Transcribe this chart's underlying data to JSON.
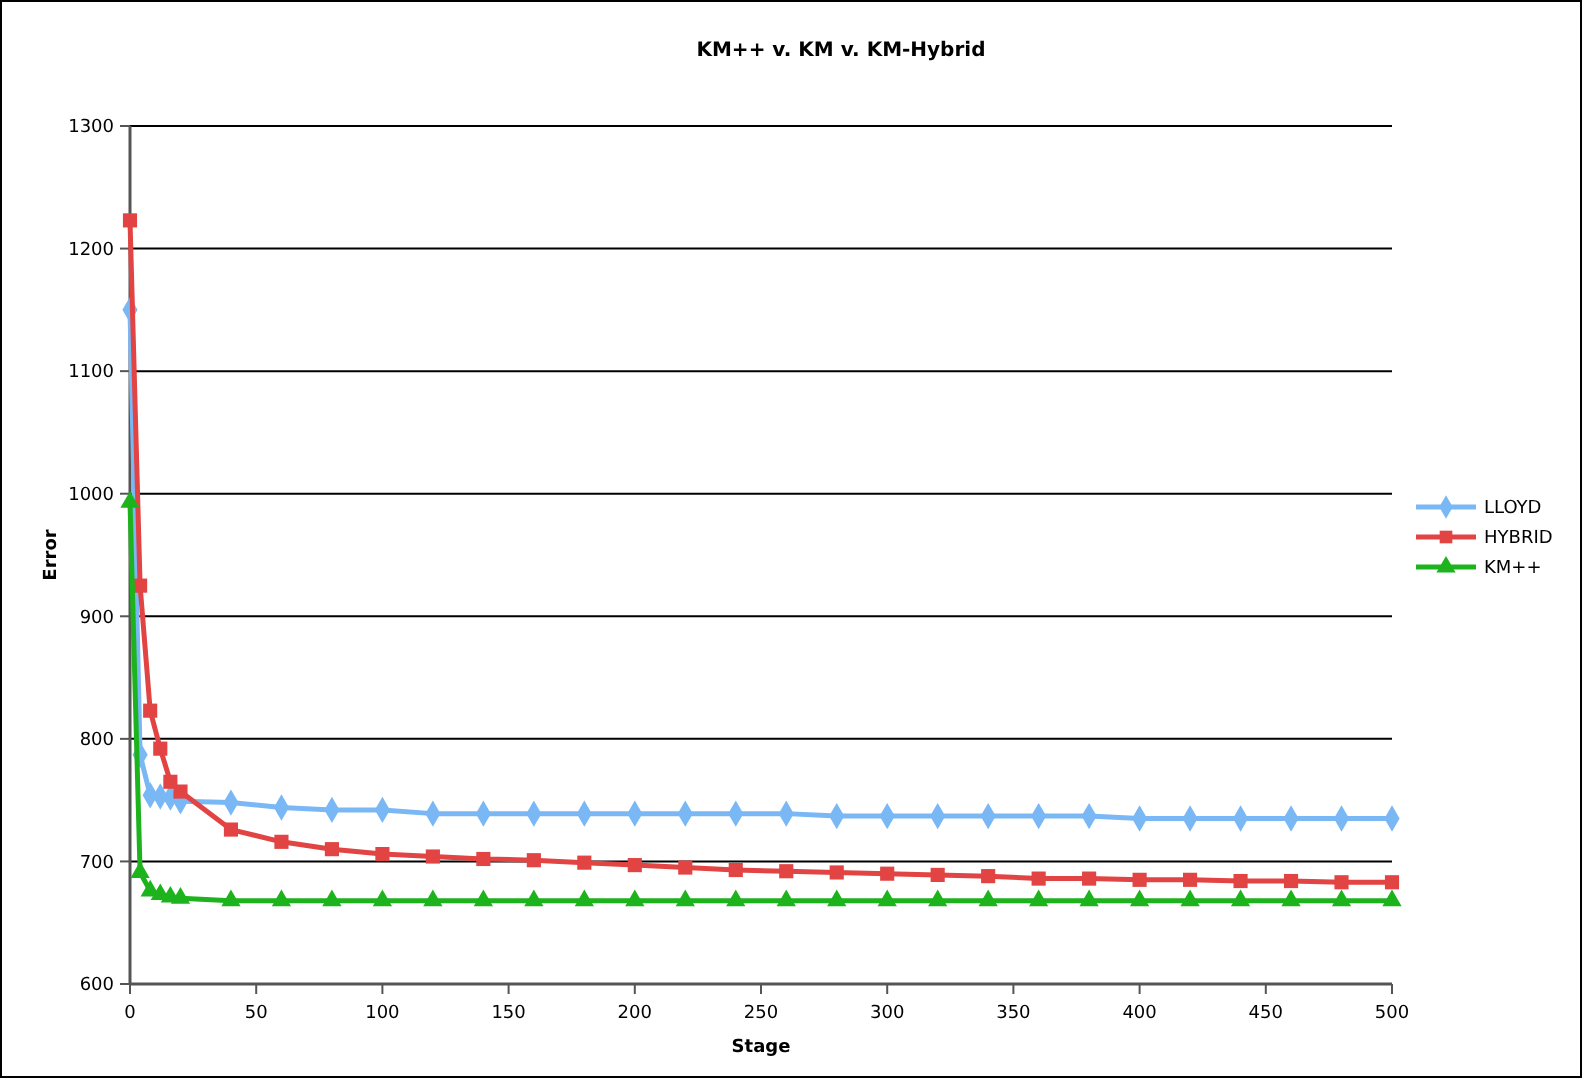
{
  "chart_data": {
    "type": "line",
    "title": "KM++ v. KM v. KM-Hybrid",
    "xlabel": "Stage",
    "ylabel": "Error",
    "x": [
      0,
      4,
      8,
      12,
      16,
      20,
      40,
      60,
      80,
      100,
      120,
      140,
      160,
      180,
      200,
      220,
      240,
      260,
      280,
      300,
      320,
      340,
      360,
      380,
      400,
      420,
      440,
      460,
      480,
      500
    ],
    "series": [
      {
        "name": "LLOYD",
        "color": "#7ab8f5",
        "marker": "diamond",
        "values": [
          1150,
          787,
          754,
          753,
          752,
          749,
          748,
          744,
          742,
          742,
          739,
          739,
          739,
          739,
          739,
          739,
          739,
          739,
          737,
          737,
          737,
          737,
          737,
          737,
          735,
          735,
          735,
          735,
          735,
          735
        ]
      },
      {
        "name": "HYBRID",
        "color": "#e24343",
        "marker": "square",
        "values": [
          1223,
          925,
          823,
          792,
          765,
          757,
          726,
          716,
          710,
          706,
          704,
          702,
          701,
          699,
          697,
          695,
          693,
          692,
          691,
          690,
          689,
          688,
          686,
          686,
          685,
          685,
          684,
          684,
          683,
          683
        ]
      },
      {
        "name": "KM++",
        "color": "#1db31d",
        "marker": "triangle",
        "values": [
          993,
          691,
          676,
          673,
          671,
          670,
          668,
          668,
          668,
          668,
          668,
          668,
          668,
          668,
          668,
          668,
          668,
          668,
          668,
          668,
          668,
          668,
          668,
          668,
          668,
          668,
          668,
          668,
          668,
          668
        ]
      }
    ],
    "xlim": [
      0,
      500
    ],
    "xticks": [
      0,
      50,
      100,
      150,
      200,
      250,
      300,
      350,
      400,
      450,
      500
    ],
    "ylim": [
      600,
      1300
    ],
    "yticks": [
      600,
      700,
      800,
      900,
      1000,
      1100,
      1200,
      1300
    ],
    "grid": "y",
    "legend": "right"
  }
}
